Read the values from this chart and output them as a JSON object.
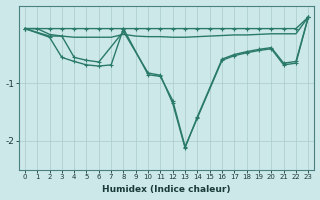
{
  "xlabel": "Humidex (Indice chaleur)",
  "background_color": "#cce8e8",
  "grid_color": "#aacccc",
  "line_color": "#2a7a6a",
  "xlim": [
    -0.5,
    23.5
  ],
  "ylim": [
    -2.5,
    0.35
  ],
  "xticks": [
    0,
    1,
    2,
    3,
    4,
    5,
    6,
    7,
    8,
    9,
    10,
    11,
    12,
    13,
    14,
    15,
    16,
    17,
    18,
    19,
    20,
    21,
    22,
    23
  ],
  "yticks": [
    -2,
    -1
  ],
  "series1_x": [
    0,
    1,
    2,
    3,
    4,
    5,
    6,
    7,
    8,
    9,
    10,
    11,
    12,
    13,
    14,
    15,
    16,
    17,
    18,
    19,
    20,
    21,
    22,
    23
  ],
  "series1_y": [
    -0.05,
    -0.05,
    -0.05,
    -0.05,
    -0.05,
    -0.05,
    -0.05,
    -0.05,
    -0.05,
    -0.05,
    -0.05,
    -0.05,
    -0.05,
    -0.05,
    -0.05,
    -0.05,
    -0.05,
    -0.05,
    -0.05,
    -0.05,
    -0.05,
    -0.05,
    -0.05,
    0.15
  ],
  "series2_x": [
    0,
    1,
    2,
    3,
    4,
    5,
    6,
    7,
    8,
    9,
    10,
    11,
    12,
    13,
    14,
    15,
    16,
    17,
    18,
    19,
    20,
    21,
    22,
    23
  ],
  "series2_y": [
    -0.05,
    -0.05,
    -0.15,
    -0.18,
    -0.2,
    -0.2,
    -0.2,
    -0.2,
    -0.15,
    -0.18,
    -0.19,
    -0.19,
    -0.2,
    -0.2,
    -0.19,
    -0.18,
    -0.17,
    -0.16,
    -0.16,
    -0.15,
    -0.14,
    -0.14,
    -0.14,
    0.15
  ],
  "series3_x": [
    0,
    2,
    3,
    4,
    5,
    6,
    7,
    8,
    10,
    11,
    12,
    13,
    14,
    16,
    17,
    18,
    19,
    20,
    21,
    22,
    23
  ],
  "series3_y": [
    -0.05,
    -0.2,
    -0.55,
    -0.62,
    -0.68,
    -0.7,
    -0.68,
    -0.05,
    -0.85,
    -0.88,
    -1.3,
    -2.1,
    -1.6,
    -0.6,
    -0.52,
    -0.47,
    -0.43,
    -0.4,
    -0.68,
    -0.65,
    0.15
  ],
  "series4_x": [
    0,
    2,
    3,
    4,
    5,
    6,
    8,
    10,
    11,
    12,
    13,
    14,
    16,
    17,
    18,
    19,
    20,
    21,
    22,
    23
  ],
  "series4_y": [
    -0.05,
    -0.18,
    -0.18,
    -0.55,
    -0.6,
    -0.63,
    -0.1,
    -0.82,
    -0.86,
    -1.35,
    -2.12,
    -1.58,
    -0.58,
    -0.5,
    -0.45,
    -0.41,
    -0.38,
    -0.65,
    -0.62,
    0.15
  ]
}
